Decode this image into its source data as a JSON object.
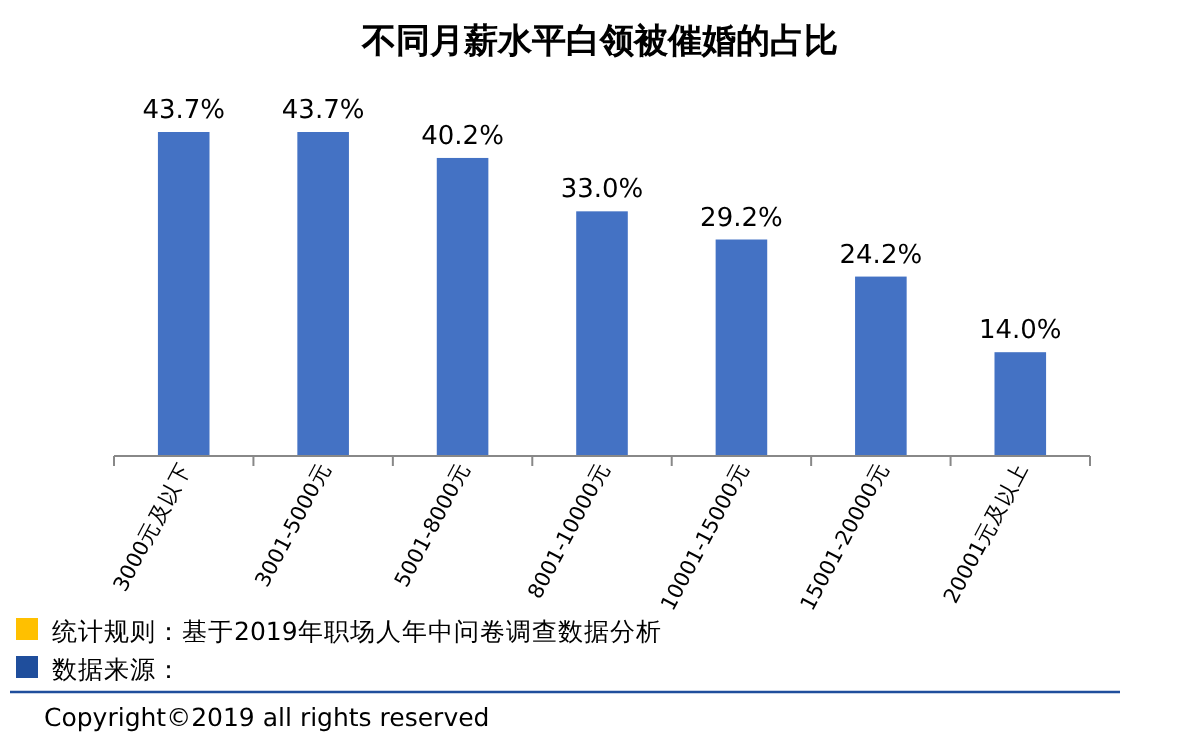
{
  "chart_data": {
    "type": "bar",
    "title": "不同月薪水平白领被催婚的占比",
    "categories": [
      "3000元及以下",
      "3001-5000元",
      "5001-8000元",
      "8001-10000元",
      "10001-15000元",
      "15001-20000元",
      "20001元及以上"
    ],
    "values": [
      43.7,
      43.7,
      40.2,
      33.0,
      29.2,
      24.2,
      14.0
    ],
    "value_labels": [
      "43.7%",
      "43.7%",
      "40.2%",
      "33.0%",
      "29.2%",
      "24.2%",
      "14.0%"
    ],
    "color": "#4472c4",
    "tick_labels": "x",
    "annotations": [
      "统计规则：基于2019年职场人年中问卷调查数据分析",
      "数据来源：",
      "Copyright©2019 all rights reserved"
    ]
  }
}
